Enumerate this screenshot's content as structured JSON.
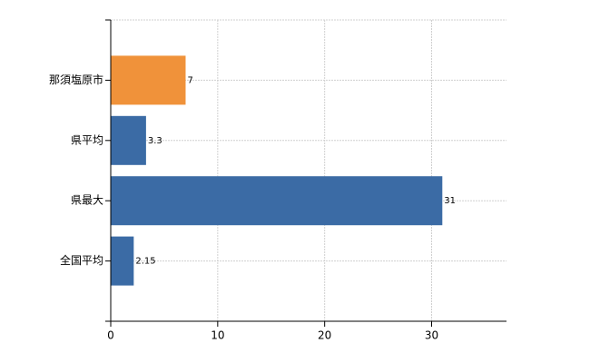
{
  "chart_data": {
    "type": "bar",
    "orientation": "horizontal",
    "categories": [
      "那須塩原市",
      "県平均",
      "県最大",
      "全国平均"
    ],
    "values": [
      7,
      3.3,
      31,
      2.15
    ],
    "colors": [
      "#f0923a",
      "#3b6ba5",
      "#3b6ba5",
      "#3b6ba5"
    ],
    "xlim": [
      0,
      37
    ],
    "xticks": [
      0,
      10,
      20,
      30
    ],
    "grid": true
  }
}
